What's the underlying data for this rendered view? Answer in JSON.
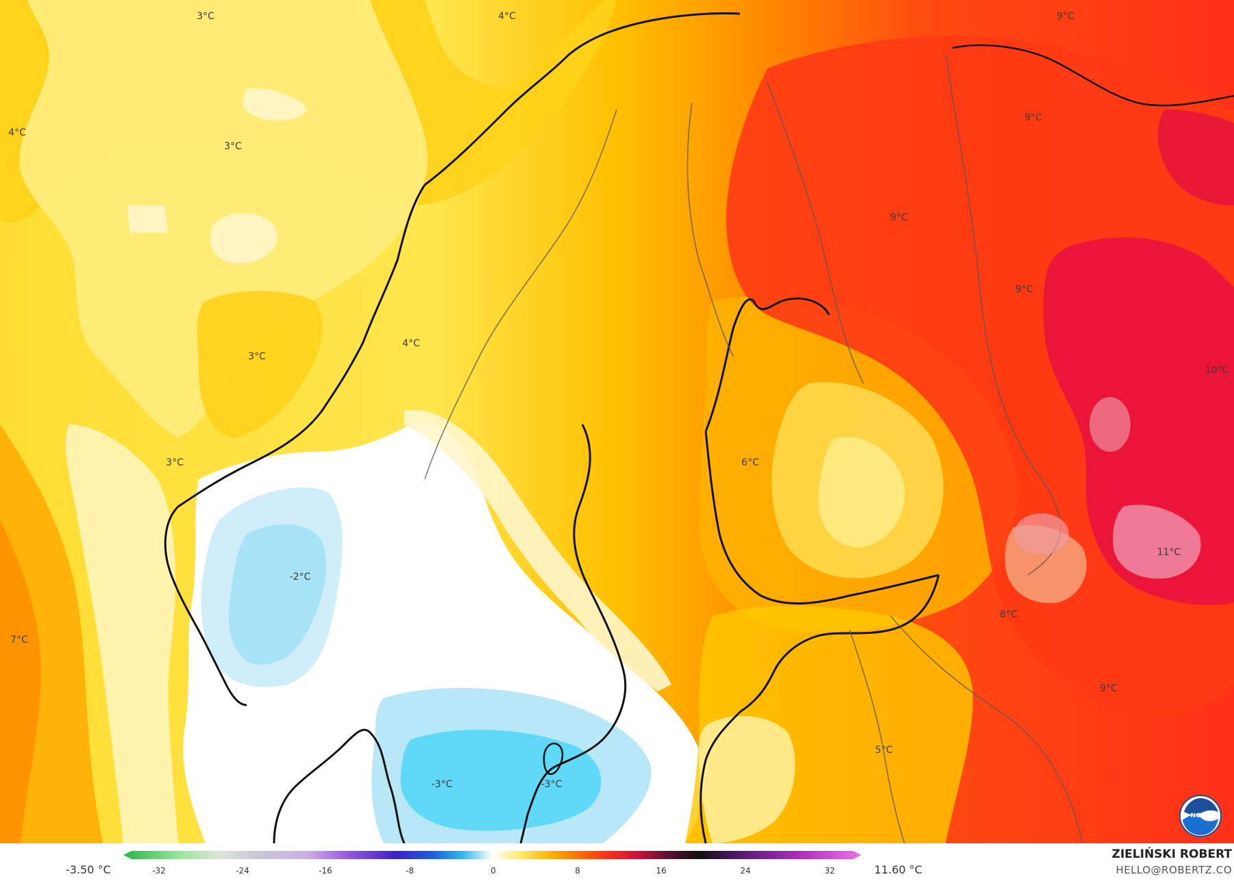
{
  "map": {
    "labels": [
      {
        "id": "l1",
        "text": "3°C"
      },
      {
        "id": "l2",
        "text": "4°C"
      },
      {
        "id": "l3",
        "text": "9°C"
      },
      {
        "id": "l4",
        "text": "4°C"
      },
      {
        "id": "l5",
        "text": "3°C"
      },
      {
        "id": "l6",
        "text": "9°C"
      },
      {
        "id": "l7",
        "text": "9°C"
      },
      {
        "id": "l8",
        "text": "9°C"
      },
      {
        "id": "l9",
        "text": "4°C"
      },
      {
        "id": "l10",
        "text": "3°C"
      },
      {
        "id": "l11",
        "text": "10°C"
      },
      {
        "id": "l12",
        "text": "3°C"
      },
      {
        "id": "l13",
        "text": "6°C"
      },
      {
        "id": "l14",
        "text": "-2°C"
      },
      {
        "id": "l15",
        "text": "11°C"
      },
      {
        "id": "l16",
        "text": "7°C"
      },
      {
        "id": "l17",
        "text": "8°C"
      },
      {
        "id": "l18",
        "text": "9°C"
      },
      {
        "id": "l19",
        "text": "5°C"
      },
      {
        "id": "l20",
        "text": "-3°C"
      },
      {
        "id": "l21",
        "text": "-3°C"
      }
    ]
  },
  "legend": {
    "min_value": "-3.50 °C",
    "max_value": "11.60 °C",
    "ticks": [
      "-32",
      "-24",
      "-16",
      "-8",
      "0",
      "8",
      "16",
      "24",
      "32"
    ]
  },
  "credit": {
    "name": "ZIELIŃSKI ROBERT",
    "email": "HELLO@ROBERTZ.CO"
  },
  "logo": {
    "text": "NOAA"
  },
  "colors": {
    "frozen": "#55dcf8",
    "cold": "#aee6f8",
    "zero": "#ffffff",
    "mild": "#fff2b0",
    "warm": "#ffe35a",
    "warmer": "#ffcc00",
    "hot": "#ff9a00",
    "hotter": "#ff4a10",
    "hottest": "#e8103a"
  }
}
